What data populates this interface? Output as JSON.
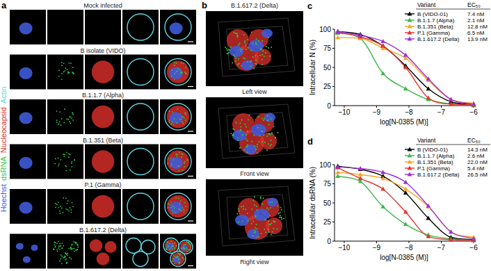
{
  "panel_a": {
    "label": "a",
    "channels": [
      {
        "name": "Hoechst",
        "color": "#3f5bd8"
      },
      {
        "name": "dsRNA",
        "color": "#2fc948"
      },
      {
        "name": "Nucleocapsid",
        "color": "#e0302b"
      },
      {
        "name": "Actin",
        "color": "#5fd6e0"
      }
    ],
    "rows": [
      "Mock infected",
      "B isolate (VIDO)",
      "B.1.1.7 (Alpha)",
      "B.1.351 (Beta)",
      "P.1 (Gamma)",
      "B.1.617.2 (Delta)"
    ]
  },
  "panel_b": {
    "label": "b",
    "title": "B.1.617.2 (Delta)",
    "views": [
      "Left view",
      "Front view",
      "Right view"
    ]
  },
  "chart_data": [
    {
      "type": "line",
      "panel_label": "c",
      "x_label": "log[N-0385 (M)]",
      "y_label": "Intracellular N (%)",
      "legend_title": "Variant",
      "legend_value_title": "EC₅₀",
      "legend": "upper right",
      "grid": false,
      "marker": "triangle",
      "x": [
        -10.2,
        -9.5,
        -8.8,
        -8.1,
        -7.4,
        -6.7,
        -6
      ],
      "xlim": [
        -10.3,
        -6
      ],
      "xticks": [
        {
          "value": -10,
          "label": "−10"
        },
        {
          "value": -9,
          "label": "−9"
        },
        {
          "value": -8,
          "label": "−8"
        },
        {
          "value": -7,
          "label": "−7"
        },
        {
          "value": -6,
          "label": "−6"
        }
      ],
      "ylim": [
        0,
        100
      ],
      "yticks": [
        0,
        25,
        50,
        75,
        100
      ],
      "series": [
        {
          "name": "B (VIDO-01)",
          "color": "#000000",
          "ec50": "7.4 nM",
          "values": [
            97,
            93,
            78,
            52,
            22,
            5,
            1
          ]
        },
        {
          "name": "B.1.1.7 (Alpha)",
          "color": "#3cb84a",
          "ec50": "2.1 nM",
          "values": [
            95,
            88,
            42,
            22,
            8,
            2,
            0
          ]
        },
        {
          "name": "B.1.351 (Beta)",
          "color": "#f5a623",
          "ec50": "12.8 nM",
          "values": [
            89,
            88,
            75,
            62,
            33,
            8,
            3
          ]
        },
        {
          "name": "P.1 (Gamma)",
          "color": "#e8322b",
          "ec50": "6.5 nM",
          "values": [
            96,
            90,
            78,
            50,
            10,
            2,
            1
          ]
        },
        {
          "name": "B.1.617.2 (Delta)",
          "color": "#9b30d9",
          "ec50": "13.9 nM",
          "values": [
            97,
            92,
            84,
            66,
            35,
            8,
            2
          ]
        }
      ]
    },
    {
      "type": "line",
      "panel_label": "d",
      "x_label": "log[N-0385 (M)]",
      "y_label": "Intracellular dsRNA (%)",
      "legend_title": "Variant",
      "legend_value_title": "EC₅₀",
      "legend": "upper right",
      "grid": false,
      "marker": "triangle",
      "x": [
        -10.2,
        -9.5,
        -8.8,
        -8.1,
        -7.4,
        -6.7,
        -6
      ],
      "xlim": [
        -10.3,
        -6
      ],
      "xticks": [
        {
          "value": -10,
          "label": "−10"
        },
        {
          "value": -9,
          "label": "−9"
        },
        {
          "value": -8,
          "label": "−8"
        },
        {
          "value": -7,
          "label": "−7"
        },
        {
          "value": -6,
          "label": "−6"
        }
      ],
      "ylim": [
        0,
        100
      ],
      "yticks": [
        0,
        25,
        50,
        75,
        100
      ],
      "series": [
        {
          "name": "B (VIDO-01)",
          "color": "#000000",
          "ec50": "14.3 nM",
          "values": [
            98,
            94,
            85,
            63,
            30,
            5,
            2
          ]
        },
        {
          "name": "B.1.1.7 (Alpha)",
          "color": "#3cb84a",
          "ec50": "2.6 nM",
          "values": [
            85,
            78,
            45,
            22,
            8,
            3,
            1
          ]
        },
        {
          "name": "B.1.351 (Beta)",
          "color": "#f5a623",
          "ec50": "22.0 nM",
          "values": [
            90,
            87,
            82,
            68,
            45,
            12,
            5
          ]
        },
        {
          "name": "P.1 (Gamma)",
          "color": "#e8322b",
          "ec50": "5.4 nM",
          "values": [
            96,
            82,
            68,
            38,
            6,
            2,
            1
          ]
        },
        {
          "name": "B.1.617.2 (Delta)",
          "color": "#9b30d9",
          "ec50": "26.5 nM",
          "values": [
            97,
            95,
            90,
            77,
            46,
            12,
            3
          ]
        }
      ]
    }
  ]
}
